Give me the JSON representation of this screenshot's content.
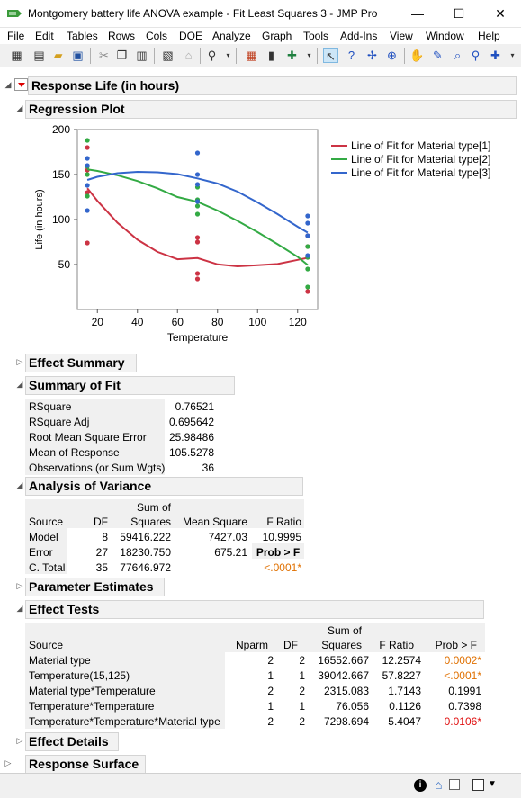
{
  "window": {
    "title": "Montgomery battery life ANOVA example - Fit Least Squares 3 - JMP Pro",
    "minimize": "—",
    "maximize": "☐",
    "close": "✕"
  },
  "menu": [
    "File",
    "Edit",
    "Tables",
    "Rows",
    "Cols",
    "DOE",
    "Analyze",
    "Graph",
    "Tools",
    "Add-Ins",
    "View",
    "Window",
    "Help"
  ],
  "report": {
    "response_title": "Response Life (in hours)",
    "regression_plot_title": "Regression Plot",
    "effect_summary_title": "Effect Summary",
    "summary_of_fit_title": "Summary of Fit",
    "anova_title": "Analysis of Variance",
    "parameter_estimates_title": "Parameter Estimates",
    "effect_tests_title": "Effect Tests",
    "effect_details_title": "Effect Details",
    "response_surface_title": "Response Surface"
  },
  "summary_of_fit": [
    {
      "label": "RSquare",
      "value": "0.76521"
    },
    {
      "label": "RSquare Adj",
      "value": "0.695642"
    },
    {
      "label": "Root Mean Square Error",
      "value": "25.98486"
    },
    {
      "label": "Mean of Response",
      "value": "105.5278"
    },
    {
      "label": "Observations (or Sum Wgts)",
      "value": "36"
    }
  ],
  "anova": {
    "headers": {
      "source": "Source",
      "df": "DF",
      "ss1": "Sum of",
      "ss2": "Squares",
      "ms": "Mean Square",
      "f": "F Ratio",
      "prob": "Prob > F"
    },
    "rows": [
      {
        "source": "Model",
        "df": "8",
        "ss": "59416.222",
        "ms": "7427.03",
        "f": "10.9995"
      },
      {
        "source": "Error",
        "df": "27",
        "ss": "18230.750",
        "ms": "675.21",
        "f": ""
      },
      {
        "source": "C. Total",
        "df": "35",
        "ss": "77646.972",
        "ms": "",
        "f": ""
      }
    ],
    "prob_value": "<.0001*"
  },
  "effect_tests": {
    "headers": {
      "source": "Source",
      "nparm": "Nparm",
      "df": "DF",
      "ss1": "Sum of",
      "ss2": "Squares",
      "f": "F Ratio",
      "prob": "Prob > F"
    },
    "rows": [
      {
        "source": "Material type",
        "nparm": "2",
        "df": "2",
        "ss": "16552.667",
        "f": "12.2574",
        "prob": "0.0002*",
        "color": "#e07000"
      },
      {
        "source": "Temperature(15,125)",
        "nparm": "1",
        "df": "1",
        "ss": "39042.667",
        "f": "57.8227",
        "prob": "<.0001*",
        "color": "#e07000"
      },
      {
        "source": "Material type*Temperature",
        "nparm": "2",
        "df": "2",
        "ss": "2315.083",
        "f": "1.7143",
        "prob": "0.1991",
        "color": "#000000"
      },
      {
        "source": "Temperature*Temperature",
        "nparm": "1",
        "df": "1",
        "ss": "76.056",
        "f": "0.1126",
        "prob": "0.7398",
        "color": "#000000"
      },
      {
        "source": "Temperature*Temperature*Material type",
        "nparm": "2",
        "df": "2",
        "ss": "7298.694",
        "f": "5.4047",
        "prob": "0.0106*",
        "color": "#e01010"
      }
    ]
  },
  "chart_data": {
    "type": "scatter",
    "title": "",
    "xlabel": "Temperature",
    "ylabel": "Life (in hours)",
    "xlim": [
      10,
      130
    ],
    "ylim": [
      0,
      200
    ],
    "x_ticks": [
      20,
      40,
      60,
      80,
      100,
      120
    ],
    "y_ticks": [
      50,
      100,
      150,
      200
    ],
    "grid": false,
    "legend_position": "right",
    "series": [
      {
        "name": "Line of Fit for Material type[1]",
        "color": "#cc3344",
        "points": [
          [
            15,
            130
          ],
          [
            15,
            155
          ],
          [
            15,
            74
          ],
          [
            15,
            180
          ],
          [
            70,
            34
          ],
          [
            70,
            80
          ],
          [
            70,
            40
          ],
          [
            70,
            75
          ],
          [
            125,
            20
          ],
          [
            125,
            70
          ],
          [
            125,
            82
          ],
          [
            125,
            58
          ]
        ],
        "fit": [
          [
            15,
            134.75
          ],
          [
            20,
            120.7
          ],
          [
            30,
            96.5
          ],
          [
            40,
            77.6
          ],
          [
            50,
            64.1
          ],
          [
            60,
            55.9
          ],
          [
            70,
            57.25
          ],
          [
            80,
            50.2
          ],
          [
            90,
            48.0
          ],
          [
            100,
            49.3
          ],
          [
            110,
            50.6
          ],
          [
            120,
            55.2
          ],
          [
            125,
            57.5
          ]
        ]
      },
      {
        "name": "Line of Fit for Material type[2]",
        "color": "#33aa44",
        "points": [
          [
            15,
            150
          ],
          [
            15,
            188
          ],
          [
            15,
            126
          ],
          [
            15,
            159
          ],
          [
            70,
            136
          ],
          [
            70,
            122
          ],
          [
            70,
            106
          ],
          [
            70,
            115
          ],
          [
            125,
            25
          ],
          [
            125,
            70
          ],
          [
            125,
            58
          ],
          [
            125,
            45
          ]
        ],
        "fit": [
          [
            15,
            155.75
          ],
          [
            20,
            154.0
          ],
          [
            30,
            149.2
          ],
          [
            40,
            142.8
          ],
          [
            50,
            134.7
          ],
          [
            60,
            125.0
          ],
          [
            70,
            119.75
          ],
          [
            80,
            110.0
          ],
          [
            90,
            98.5
          ],
          [
            100,
            86.0
          ],
          [
            110,
            72.6
          ],
          [
            120,
            58.6
          ],
          [
            125,
            49.5
          ]
        ]
      },
      {
        "name": "Line of Fit for Material type[3]",
        "color": "#3366cc",
        "points": [
          [
            15,
            138
          ],
          [
            15,
            110
          ],
          [
            15,
            168
          ],
          [
            15,
            160
          ],
          [
            70,
            174
          ],
          [
            70,
            150
          ],
          [
            70,
            120
          ],
          [
            70,
            139
          ],
          [
            125,
            96
          ],
          [
            125,
            82
          ],
          [
            125,
            104
          ],
          [
            125,
            60
          ]
        ],
        "fit": [
          [
            15,
            144.0
          ],
          [
            20,
            147.5
          ],
          [
            30,
            151.5
          ],
          [
            40,
            153.0
          ],
          [
            50,
            152.5
          ],
          [
            60,
            150.5
          ],
          [
            70,
            145.75
          ],
          [
            80,
            140.0
          ],
          [
            90,
            131.0
          ],
          [
            100,
            119.0
          ],
          [
            110,
            106.0
          ],
          [
            120,
            92.0
          ],
          [
            125,
            85.5
          ]
        ]
      }
    ]
  }
}
